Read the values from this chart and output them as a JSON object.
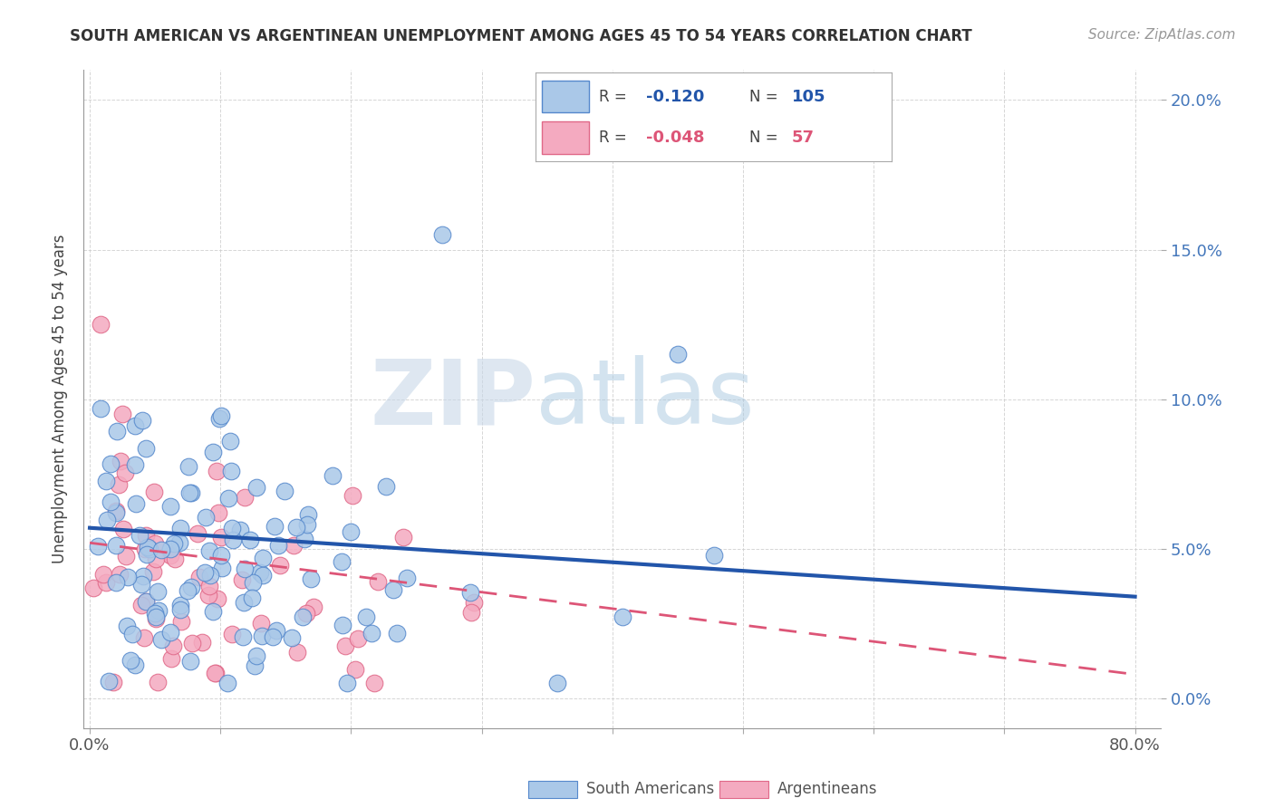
{
  "title": "SOUTH AMERICAN VS ARGENTINEAN UNEMPLOYMENT AMONG AGES 45 TO 54 YEARS CORRELATION CHART",
  "source_text": "Source: ZipAtlas.com",
  "ylabel": "Unemployment Among Ages 45 to 54 years",
  "xlim": [
    -0.005,
    0.82
  ],
  "ylim": [
    -0.01,
    0.21
  ],
  "xticks": [
    0.0,
    0.1,
    0.2,
    0.3,
    0.4,
    0.5,
    0.6,
    0.7,
    0.8
  ],
  "xticklabels": [
    "0.0%",
    "",
    "",
    "",
    "",
    "",
    "",
    "",
    "80.0%"
  ],
  "yticks": [
    0.0,
    0.05,
    0.1,
    0.15,
    0.2
  ],
  "yticklabels": [
    "0.0%",
    "5.0%",
    "10.0%",
    "15.0%",
    "20.0%"
  ],
  "blue_R": -0.12,
  "blue_N": 105,
  "pink_R": -0.048,
  "pink_N": 57,
  "blue_color": "#aac8e8",
  "pink_color": "#f4aac0",
  "blue_edge": "#5588cc",
  "pink_edge": "#e06888",
  "blue_line_color": "#2255aa",
  "pink_line_color": "#dd5577",
  "watermark_zip": "ZIP",
  "watermark_atlas": "atlas",
  "legend_label_blue": "South Americans",
  "legend_label_pink": "Argentineans",
  "blue_trend_start": 0.057,
  "blue_trend_end": 0.034,
  "pink_trend_start": 0.052,
  "pink_trend_end": 0.008
}
